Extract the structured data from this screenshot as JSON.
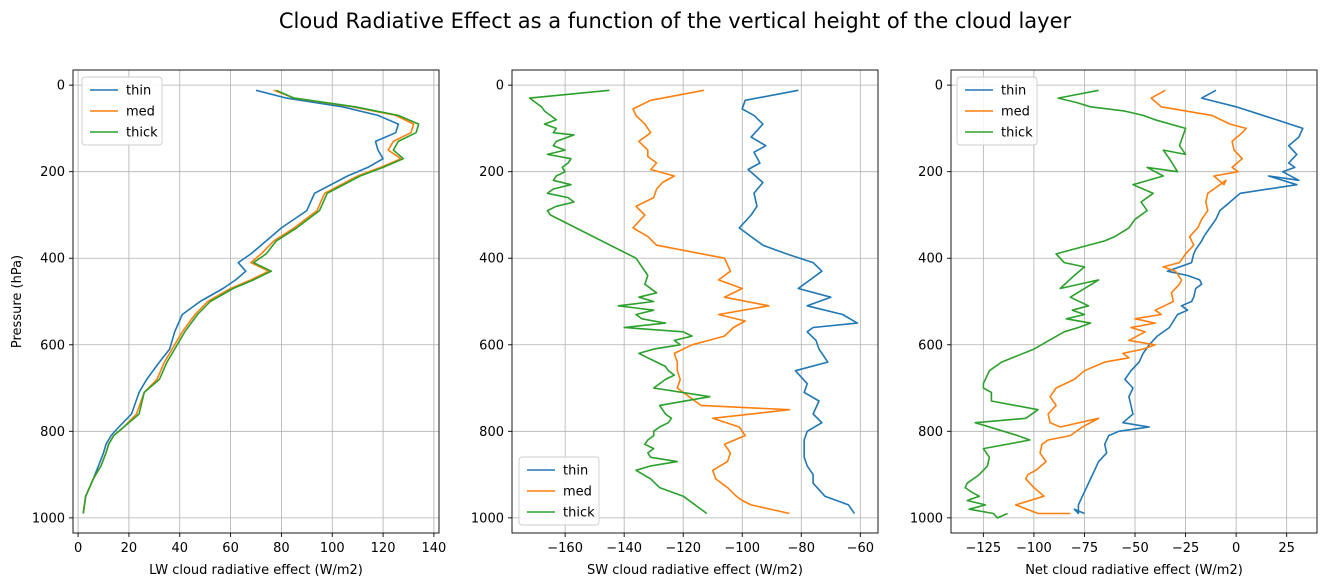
{
  "figure": {
    "title": "Cloud Radiative Effect as a function of the vertical height of the cloud layer"
  },
  "chart_data": [
    {
      "type": "line",
      "orientation": "x-vs-pressure",
      "xlabel": "LW cloud radiative effect (W/m2)",
      "ylabel": "Pressure (hPa)",
      "xlim": [
        -2,
        142
      ],
      "ylim": [
        1035,
        -35
      ],
      "xticks": [
        0,
        20,
        40,
        60,
        80,
        100,
        120,
        140
      ],
      "yticks": [
        0,
        200,
        400,
        600,
        800,
        1000
      ],
      "grid": true,
      "legend": "upper left",
      "series": [
        {
          "name": "thin",
          "color": "#1f77b4",
          "x": [
            70,
            82,
            104,
            118,
            126,
            125,
            117,
            118,
            120,
            114,
            106,
            93,
            90,
            80,
            74,
            68,
            63,
            66,
            62,
            57,
            48,
            41,
            38,
            36,
            32,
            27,
            24,
            21,
            16,
            13,
            11,
            10,
            8,
            6,
            3,
            2
          ],
          "y": [
            12,
            30,
            50,
            70,
            90,
            110,
            130,
            150,
            170,
            190,
            210,
            250,
            290,
            330,
            360,
            390,
            410,
            430,
            450,
            470,
            500,
            530,
            570,
            610,
            640,
            680,
            710,
            760,
            790,
            810,
            830,
            850,
            880,
            910,
            950,
            990
          ]
        },
        {
          "name": "med",
          "color": "#ff7f0e",
          "x": [
            77,
            85,
            108,
            125,
            132,
            131,
            124,
            122,
            127,
            119,
            110,
            97,
            94,
            85,
            77,
            72,
            68,
            75,
            68,
            60,
            51,
            46,
            41,
            37,
            34,
            31,
            26,
            23,
            18,
            14,
            12,
            11,
            9,
            6,
            3,
            2
          ],
          "y": [
            12,
            30,
            50,
            70,
            90,
            110,
            130,
            150,
            170,
            190,
            210,
            250,
            290,
            330,
            360,
            390,
            410,
            430,
            450,
            470,
            500,
            530,
            570,
            610,
            640,
            680,
            710,
            760,
            790,
            810,
            830,
            850,
            880,
            910,
            950,
            990
          ]
        },
        {
          "name": "thick",
          "color": "#2ca02c",
          "x": [
            78,
            85,
            109,
            126,
            134,
            133,
            126,
            124,
            128,
            120,
            111,
            98,
            95,
            86,
            78,
            74,
            69,
            76,
            69,
            61,
            52,
            47,
            42,
            38,
            35,
            32,
            26,
            24,
            18,
            14,
            12,
            11,
            9,
            6,
            3,
            2
          ],
          "y": [
            12,
            30,
            50,
            70,
            90,
            110,
            130,
            150,
            170,
            190,
            210,
            250,
            290,
            330,
            360,
            390,
            410,
            430,
            450,
            470,
            500,
            530,
            570,
            610,
            640,
            680,
            710,
            760,
            790,
            810,
            830,
            850,
            880,
            910,
            950,
            990
          ]
        }
      ]
    },
    {
      "type": "line",
      "orientation": "x-vs-pressure",
      "xlabel": "SW cloud radiative effect (W/m2)",
      "ylabel": "",
      "xlim": [
        -178,
        -54
      ],
      "ylim": [
        1035,
        -35
      ],
      "xticks": [
        -160,
        -140,
        -120,
        -100,
        -80,
        -60
      ],
      "yticks": [
        0,
        200,
        400,
        600,
        800,
        1000
      ],
      "grid": true,
      "legend": "lower left",
      "series": [
        {
          "name": "thin",
          "color": "#1f77b4",
          "x": [
            -81,
            -99,
            -100,
            -96,
            -93,
            -97,
            -92,
            -96,
            -94,
            -98,
            -93,
            -96,
            -95,
            -97,
            -101,
            -97,
            -93,
            -85,
            -76,
            -73,
            -81,
            -70,
            -78,
            -66,
            -61,
            -76,
            -78,
            -75,
            -74,
            -71,
            -82,
            -78,
            -79,
            -74,
            -76,
            -73,
            -78,
            -79,
            -79,
            -78,
            -76,
            -76,
            -72,
            -64,
            -62
          ],
          "y": [
            12,
            35,
            55,
            70,
            90,
            120,
            140,
            155,
            180,
            195,
            225,
            250,
            280,
            300,
            330,
            350,
            370,
            390,
            410,
            430,
            470,
            490,
            510,
            530,
            550,
            560,
            570,
            590,
            610,
            640,
            660,
            690,
            710,
            730,
            760,
            780,
            800,
            820,
            860,
            880,
            900,
            920,
            950,
            970,
            990
          ]
        },
        {
          "name": "med",
          "color": "#ff7f0e",
          "x": [
            -113,
            -131,
            -137,
            -136,
            -133,
            -131,
            -135,
            -132,
            -132,
            -129,
            -131,
            -123,
            -127,
            -129,
            -130,
            -136,
            -133,
            -137,
            -132,
            -129,
            -106,
            -104,
            -108,
            -100,
            -106,
            -91,
            -108,
            -99,
            -103,
            -106,
            -117,
            -123,
            -122,
            -122,
            -121,
            -122,
            -118,
            -114,
            -84,
            -110,
            -101,
            -99,
            -106,
            -104,
            -105,
            -110,
            -109,
            -105,
            -102,
            -100,
            -97,
            -84
          ],
          "y": [
            12,
            35,
            55,
            70,
            90,
            110,
            130,
            150,
            165,
            180,
            195,
            210,
            225,
            240,
            260,
            280,
            300,
            330,
            350,
            370,
            400,
            430,
            450,
            470,
            490,
            510,
            530,
            545,
            560,
            580,
            600,
            620,
            640,
            660,
            680,
            700,
            720,
            740,
            750,
            770,
            790,
            810,
            830,
            850,
            870,
            890,
            910,
            930,
            950,
            960,
            970,
            990
          ]
        },
        {
          "name": "thick",
          "color": "#2ca02c",
          "x": [
            -145,
            -172,
            -170,
            -168,
            -167,
            -165,
            -163,
            -167,
            -163,
            -164,
            -157,
            -163,
            -164,
            -160,
            -166,
            -158,
            -159,
            -161,
            -160,
            -163,
            -164,
            -158,
            -164,
            -166,
            -159,
            -157,
            -163,
            -166,
            -165,
            -136,
            -132,
            -133,
            -129,
            -135,
            -130,
            -142,
            -130,
            -136,
            -134,
            -126,
            -140,
            -120,
            -117,
            -123,
            -121,
            -130,
            -135,
            -132,
            -129,
            -126,
            -125,
            -123,
            -126,
            -130,
            -111,
            -128,
            -126,
            -124,
            -125,
            -128,
            -130,
            -130,
            -132,
            -133,
            -130,
            -132,
            -131,
            -122,
            -131,
            -136,
            -131,
            -128,
            -120,
            -112
          ],
          "y": [
            12,
            30,
            40,
            50,
            60,
            70,
            80,
            90,
            100,
            110,
            115,
            130,
            140,
            150,
            160,
            170,
            180,
            190,
            200,
            210,
            220,
            230,
            240,
            250,
            260,
            270,
            280,
            290,
            300,
            400,
            440,
            460,
            480,
            490,
            500,
            510,
            520,
            530,
            540,
            550,
            560,
            570,
            580,
            590,
            600,
            610,
            620,
            630,
            640,
            650,
            660,
            670,
            680,
            700,
            720,
            740,
            760,
            770,
            780,
            790,
            800,
            810,
            820,
            830,
            840,
            850,
            860,
            870,
            880,
            890,
            910,
            930,
            950,
            990
          ]
        }
      ]
    },
    {
      "type": "line",
      "orientation": "x-vs-pressure",
      "xlabel": "Net cloud radiative effect (W/m2)",
      "ylabel": "",
      "xlim": [
        -141,
        40
      ],
      "ylim": [
        1035,
        -35
      ],
      "xticks": [
        -125,
        -100,
        -75,
        -50,
        -25,
        0,
        25
      ],
      "yticks": [
        0,
        200,
        400,
        600,
        800,
        1000
      ],
      "grid": true,
      "legend": "upper left",
      "series": [
        {
          "name": "thin",
          "color": "#1f77b4",
          "x": [
            -10,
            -17,
            0,
            20,
            33,
            31,
            26,
            30,
            26,
            29,
            23,
            31,
            16,
            30,
            2,
            -3,
            -8,
            -10,
            -13,
            -16,
            -17,
            -20,
            -21,
            -22,
            -34,
            -24,
            -18,
            -17,
            -20,
            -21,
            -22,
            -27,
            -24,
            -29,
            -33,
            -39,
            -43,
            -46,
            -48,
            -52,
            -55,
            -51,
            -53,
            -51,
            -56,
            -43,
            -58,
            -63,
            -65,
            -64,
            -68,
            -70,
            -72,
            -74,
            -76,
            -78,
            -78,
            -80,
            -75
          ],
          "y": [
            12,
            30,
            50,
            80,
            100,
            120,
            140,
            160,
            180,
            190,
            200,
            220,
            210,
            230,
            250,
            270,
            290,
            310,
            330,
            350,
            360,
            380,
            390,
            410,
            430,
            440,
            450,
            460,
            470,
            490,
            500,
            510,
            520,
            530,
            560,
            580,
            600,
            620,
            640,
            660,
            680,
            700,
            720,
            760,
            780,
            790,
            800,
            810,
            830,
            850,
            870,
            890,
            910,
            930,
            950,
            970,
            990,
            980,
            990
          ]
        },
        {
          "name": "med",
          "color": "#ff7f0e",
          "x": [
            -35,
            -42,
            -37,
            -12,
            -3,
            5,
            3,
            -2,
            -1,
            3,
            -2,
            1,
            -11,
            -6,
            -5,
            -11,
            -14,
            -15,
            -14,
            -17,
            -19,
            -23,
            -21,
            -25,
            -28,
            -36,
            -30,
            -27,
            -28,
            -32,
            -31,
            -40,
            -37,
            -50,
            -40,
            -52,
            -45,
            -53,
            -40,
            -46,
            -56,
            -53,
            -65,
            -75,
            -80,
            -89,
            -92,
            -89,
            -93,
            -92,
            -87,
            -68,
            -76,
            -82,
            -93,
            -96,
            -97,
            -94,
            -99,
            -103,
            -104,
            -100,
            -95,
            -109,
            -98,
            -82
          ],
          "y": [
            12,
            30,
            50,
            70,
            90,
            100,
            110,
            130,
            150,
            170,
            190,
            200,
            210,
            230,
            220,
            240,
            250,
            270,
            290,
            310,
            330,
            350,
            370,
            390,
            410,
            420,
            430,
            450,
            460,
            480,
            500,
            520,
            530,
            540,
            550,
            560,
            570,
            590,
            600,
            610,
            620,
            630,
            640,
            660,
            680,
            700,
            720,
            740,
            760,
            780,
            790,
            770,
            790,
            810,
            820,
            830,
            850,
            870,
            890,
            900,
            910,
            930,
            950,
            970,
            990,
            990
          ]
        },
        {
          "name": "thick",
          "color": "#2ca02c",
          "x": [
            -68,
            -88,
            -79,
            -72,
            -55,
            -46,
            -40,
            -25,
            -28,
            -25,
            -36,
            -33,
            -29,
            -44,
            -36,
            -51,
            -41,
            -47,
            -44,
            -50,
            -53,
            -60,
            -65,
            -89,
            -85,
            -75,
            -80,
            -87,
            -68,
            -82,
            -73,
            -81,
            -75,
            -84,
            -72,
            -78,
            -85,
            -100,
            -116,
            -122,
            -125,
            -125,
            -121,
            -121,
            -98,
            -104,
            -129,
            -108,
            -102,
            -125,
            -122,
            -123,
            -127,
            -133,
            -134,
            -131,
            -127,
            -133,
            -124,
            -132,
            -120,
            -118,
            -113
          ],
          "y": [
            12,
            30,
            40,
            50,
            60,
            70,
            80,
            100,
            140,
            160,
            150,
            170,
            200,
            190,
            210,
            230,
            250,
            270,
            290,
            310,
            330,
            350,
            360,
            390,
            410,
            420,
            440,
            470,
            450,
            490,
            510,
            520,
            530,
            540,
            550,
            560,
            570,
            610,
            640,
            660,
            690,
            700,
            710,
            730,
            750,
            770,
            780,
            810,
            820,
            840,
            860,
            880,
            900,
            920,
            930,
            940,
            950,
            960,
            970,
            980,
            990,
            1000,
            990
          ]
        }
      ]
    }
  ]
}
